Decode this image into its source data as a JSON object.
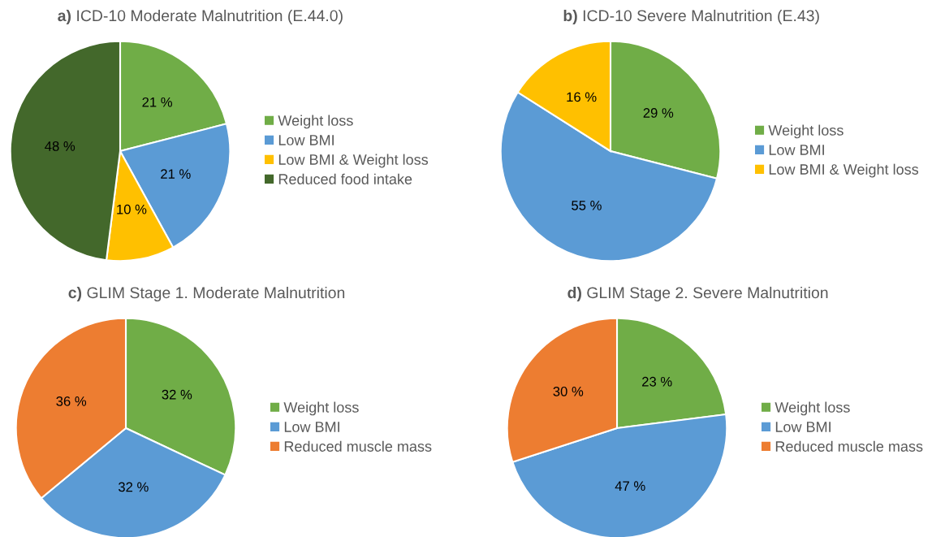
{
  "chart_data": [
    {
      "type": "pie",
      "title": "a) ICD-10 Moderate Malnutrition (E.44.0)",
      "categories": [
        "Weight loss",
        "Low BMI",
        "Low BMI & Weight loss",
        "Reduced food intake"
      ],
      "values": [
        21,
        21,
        10,
        48
      ],
      "colors": [
        "#70ad47",
        "#5b9bd5",
        "#ffc000",
        "#43682b"
      ],
      "value_labels": [
        "21 %",
        "21 %",
        "10 %",
        "48 %"
      ],
      "legend": "right"
    },
    {
      "type": "pie",
      "title": "b) ICD-10 Severe Malnutrition (E.43)",
      "categories": [
        "Weight loss",
        "Low BMI",
        "Low BMI & Weight loss"
      ],
      "values": [
        29,
        55,
        16
      ],
      "colors": [
        "#70ad47",
        "#5b9bd5",
        "#ffc000"
      ],
      "value_labels": [
        "29 %",
        "55 %",
        "16 %"
      ],
      "legend": "right"
    },
    {
      "type": "pie",
      "title": "c) GLIM Stage 1. Moderate Malnutrition",
      "categories": [
        "Weight loss",
        "Low BMI",
        "Reduced muscle mass"
      ],
      "values": [
        32,
        32,
        36
      ],
      "colors": [
        "#70ad47",
        "#5b9bd5",
        "#ed7d31"
      ],
      "value_labels": [
        "32 %",
        "32 %",
        "36 %"
      ],
      "legend": "right"
    },
    {
      "type": "pie",
      "title": "d) GLIM Stage 2. Severe Malnutrition",
      "categories": [
        "Weight loss",
        "Low BMI",
        "Reduced muscle mass"
      ],
      "values": [
        23,
        47,
        30
      ],
      "colors": [
        "#70ad47",
        "#5b9bd5",
        "#ed7d31"
      ],
      "value_labels": [
        "23 %",
        "47 %",
        "30 %"
      ],
      "legend": "right"
    }
  ]
}
